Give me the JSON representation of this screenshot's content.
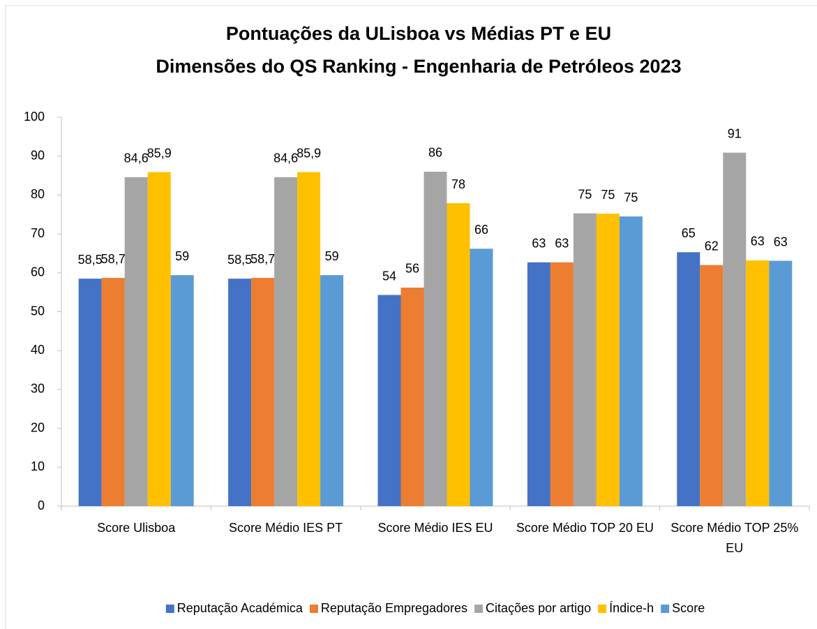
{
  "chart_data": {
    "type": "bar",
    "title": [
      "Pontuações da ULisboa vs Médias PT e EU",
      "Dimensões do QS Ranking - Engenharia de Petróleos 2023"
    ],
    "categories": [
      "Score Ulisboa",
      "Score Médio IES PT",
      "Score Médio IES EU",
      "Score Médio TOP 20 EU",
      "Score Médio TOP 25% EU"
    ],
    "series": [
      {
        "name": "Reputação Académica",
        "color": "#4472c4",
        "values": [
          58.5,
          58.5,
          54.3,
          62.7,
          65.3
        ],
        "value_labels": [
          "58,5",
          "58,5",
          "54",
          "63",
          "65"
        ]
      },
      {
        "name": "Reputação Empregadores",
        "color": "#ed7d31",
        "values": [
          58.7,
          58.7,
          56.2,
          62.7,
          62
        ],
        "value_labels": [
          "58,7",
          "58,7",
          "56",
          "63",
          "62"
        ]
      },
      {
        "name": "Citações por artigo",
        "color": "#a5a5a5",
        "values": [
          84.6,
          84.6,
          86,
          75.3,
          90.9
        ],
        "value_labels": [
          "84,6",
          "84,6",
          "86",
          "75",
          "91"
        ]
      },
      {
        "name": "Índice-h",
        "color": "#ffc000",
        "values": [
          85.9,
          85.9,
          77.9,
          75.2,
          63.2
        ],
        "value_labels": [
          "85,9",
          "85,9",
          "78",
          "75",
          "63"
        ]
      },
      {
        "name": "Score",
        "color": "#5b9bd5",
        "values": [
          59.4,
          59.4,
          66.2,
          74.5,
          63.1
        ],
        "value_labels": [
          "59",
          "59",
          "66",
          "75",
          "63"
        ]
      }
    ],
    "ylim": [
      0,
      100
    ],
    "yticks": [
      0,
      10,
      20,
      30,
      40,
      50,
      60,
      70,
      80,
      90,
      100
    ],
    "grid": false,
    "legend": "bottom"
  }
}
